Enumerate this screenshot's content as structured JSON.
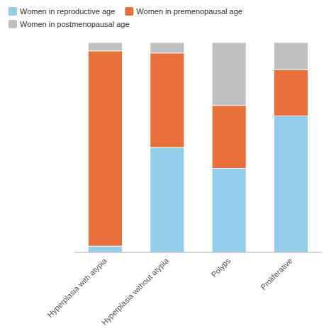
{
  "chart_data": {
    "type": "bar",
    "stacked": true,
    "categories": [
      "Hyperplasia with atypia",
      "Hyperplasia without atypia",
      "Polyps",
      "Proliferative"
    ],
    "series": [
      {
        "name": "Women in reproductive age",
        "color": "#92CEEB",
        "values": [
          3,
          50,
          40,
          65
        ]
      },
      {
        "name": "Women in premenopausal age",
        "color": "#E8703A",
        "values": [
          93,
          45,
          30,
          22
        ]
      },
      {
        "name": "Women in postmenopausal age",
        "color": "#C0C0C0",
        "values": [
          4,
          5,
          30,
          13
        ]
      }
    ],
    "ylim": [
      0,
      100
    ],
    "tick_labels": "x",
    "grid": false,
    "legend": "upper left"
  }
}
